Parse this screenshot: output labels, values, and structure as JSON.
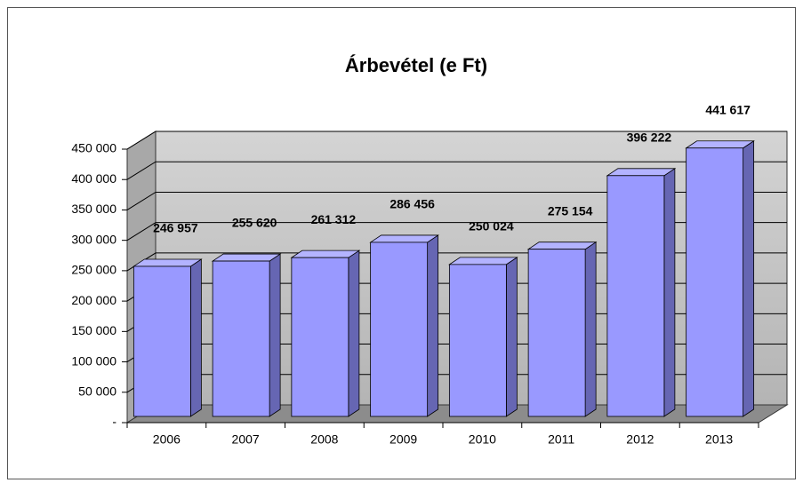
{
  "chart_data": {
    "type": "bar3d",
    "title": "Árbevétel (e Ft)",
    "categories": [
      "2006",
      "2007",
      "2008",
      "2009",
      "2010",
      "2011",
      "2012",
      "2013"
    ],
    "values": [
      246957,
      255620,
      261312,
      286456,
      250024,
      275154,
      396222,
      441617
    ],
    "value_labels": [
      "246 957",
      "255 620",
      "261 312",
      "286 456",
      "250 024",
      "275 154",
      "396 222",
      "441 617"
    ],
    "color": "#9999ff",
    "ylim": [
      0,
      450000
    ],
    "yticks": [
      {
        "value": 0,
        "label": "-"
      },
      {
        "value": 50000,
        "label": "50 000"
      },
      {
        "value": 100000,
        "label": "100 000"
      },
      {
        "value": 150000,
        "label": "150 000"
      },
      {
        "value": 200000,
        "label": "200 000"
      },
      {
        "value": 250000,
        "label": "250 000"
      },
      {
        "value": 300000,
        "label": "300 000"
      },
      {
        "value": 350000,
        "label": "350 000"
      },
      {
        "value": 400000,
        "label": "400 000"
      },
      {
        "value": 450000,
        "label": "450 000"
      }
    ],
    "grid": true
  }
}
